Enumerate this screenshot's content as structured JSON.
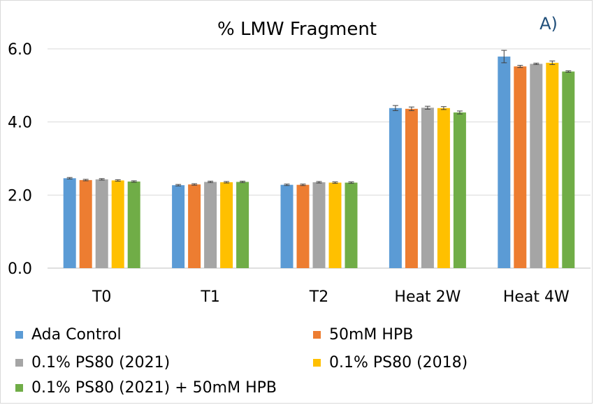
{
  "chart_data": {
    "type": "bar",
    "title": "% LMW Fragment",
    "panel_label": "A)",
    "categories": [
      "T0",
      "T1",
      "T2",
      "Heat 2W",
      "Heat 4W"
    ],
    "ylim": [
      0,
      6.0
    ],
    "yticks": [
      "0.0",
      "2.0",
      "4.0",
      "6.0"
    ],
    "ytick_values": [
      0,
      2,
      4,
      6
    ],
    "grid": true,
    "xlabel": "",
    "ylabel": "",
    "series": [
      {
        "name": "Ada Control",
        "color": "#5b9bd5",
        "values": [
          2.46,
          2.27,
          2.28,
          4.38,
          5.79
        ],
        "errors": [
          0.02,
          0.02,
          0.02,
          0.07,
          0.17
        ]
      },
      {
        "name": "50mM HPB",
        "color": "#ed7d31",
        "values": [
          2.41,
          2.29,
          2.28,
          4.36,
          5.52
        ],
        "errors": [
          0.02,
          0.02,
          0.02,
          0.05,
          0.03
        ]
      },
      {
        "name": "0.1% PS80 (2021)",
        "color": "#a5a5a5",
        "values": [
          2.43,
          2.36,
          2.35,
          4.39,
          5.59
        ],
        "errors": [
          0.02,
          0.02,
          0.02,
          0.04,
          0.02
        ]
      },
      {
        "name": "0.1% PS80 (2018)",
        "color": "#ffc000",
        "values": [
          2.4,
          2.35,
          2.34,
          4.38,
          5.62
        ],
        "errors": [
          0.02,
          0.02,
          0.02,
          0.04,
          0.05
        ]
      },
      {
        "name": "0.1% PS80 (2021) + 50mM HPB",
        "color": "#70ad47",
        "values": [
          2.37,
          2.36,
          2.34,
          4.26,
          5.38
        ],
        "errors": [
          0.02,
          0.02,
          0.02,
          0.04,
          0.02
        ]
      }
    ]
  }
}
